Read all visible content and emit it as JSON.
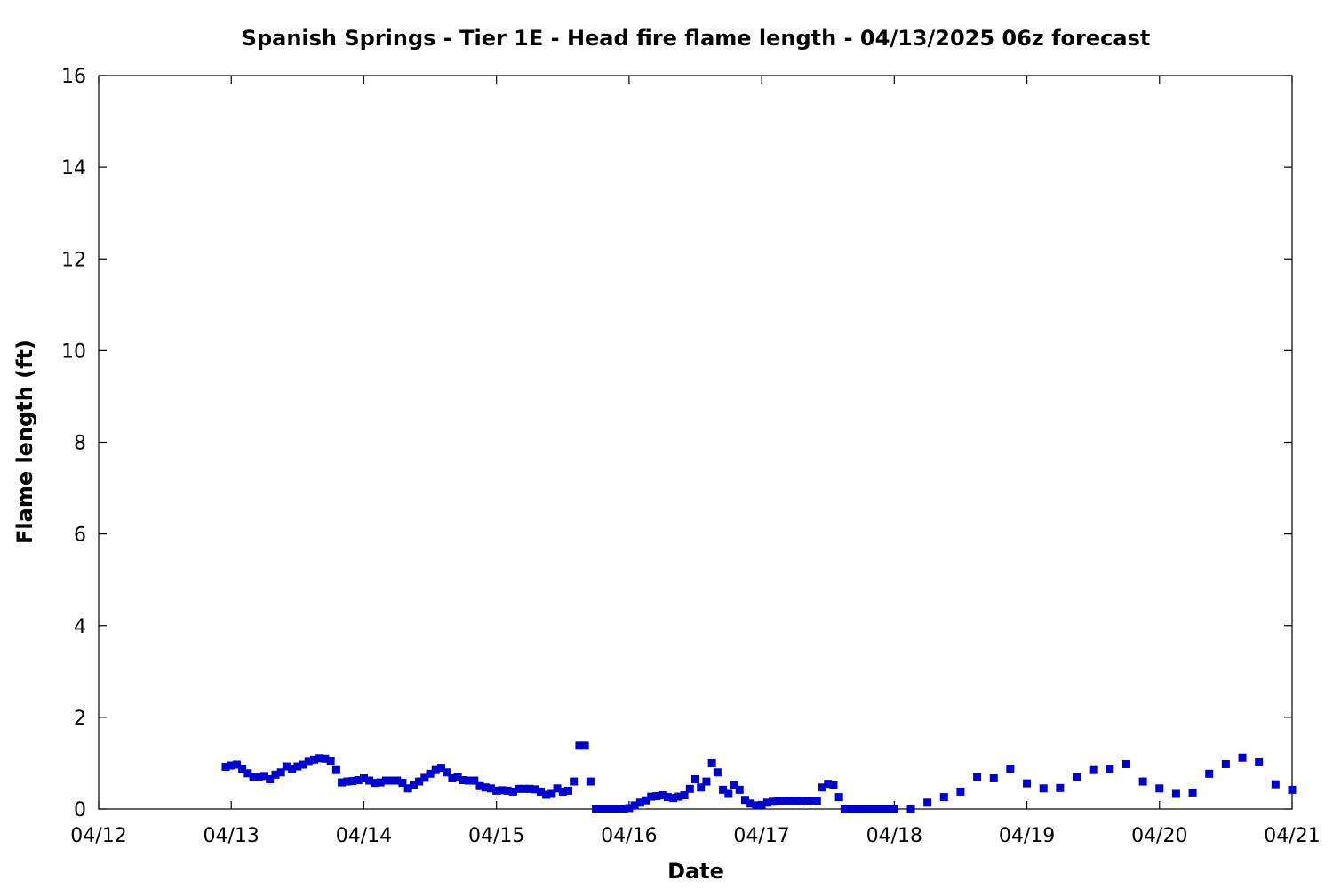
{
  "chart_data": {
    "type": "scatter",
    "title": "Spanish Springs - Tier 1E - Head fire flame length - 04/13/2025 06z forecast",
    "xlabel": "Date",
    "ylabel": "Flame length (ft)",
    "xlim": [
      "2025-04-12",
      "2025-04-21"
    ],
    "ylim": [
      0,
      16
    ],
    "x_ticks": [
      "04/12",
      "04/13",
      "04/14",
      "04/15",
      "04/16",
      "04/17",
      "04/18",
      "04/19",
      "04/20",
      "04/21"
    ],
    "y_ticks": [
      0,
      2,
      4,
      6,
      8,
      10,
      12,
      14,
      16
    ],
    "grid": false,
    "marker_color": "#0000cc",
    "series": [
      {
        "x_unit": "date (April 2025), time in UTC",
        "points": [
          [
            "04/12 23:00",
            0.92
          ],
          [
            "04/13 00:00",
            0.95
          ],
          [
            "04/13 01:00",
            0.97
          ],
          [
            "04/13 02:00",
            0.88
          ],
          [
            "04/13 03:00",
            0.78
          ],
          [
            "04/13 04:00",
            0.7
          ],
          [
            "04/13 05:00",
            0.7
          ],
          [
            "04/13 06:00",
            0.72
          ],
          [
            "04/13 07:00",
            0.65
          ],
          [
            "04/13 08:00",
            0.75
          ],
          [
            "04/13 09:00",
            0.8
          ],
          [
            "04/13 10:00",
            0.93
          ],
          [
            "04/13 11:00",
            0.88
          ],
          [
            "04/13 12:00",
            0.93
          ],
          [
            "04/13 13:00",
            0.97
          ],
          [
            "04/13 14:00",
            1.03
          ],
          [
            "04/13 15:00",
            1.08
          ],
          [
            "04/13 16:00",
            1.11
          ],
          [
            "04/13 17:00",
            1.1
          ],
          [
            "04/13 18:00",
            1.05
          ],
          [
            "04/13 19:00",
            0.85
          ],
          [
            "04/13 20:00",
            0.58
          ],
          [
            "04/13 21:00",
            0.6
          ],
          [
            "04/13 22:00",
            0.61
          ],
          [
            "04/13 23:00",
            0.63
          ],
          [
            "04/14 00:00",
            0.67
          ],
          [
            "04/14 01:00",
            0.62
          ],
          [
            "04/14 02:00",
            0.57
          ],
          [
            "04/14 03:00",
            0.58
          ],
          [
            "04/14 04:00",
            0.62
          ],
          [
            "04/14 05:00",
            0.62
          ],
          [
            "04/14 06:00",
            0.62
          ],
          [
            "04/14 07:00",
            0.57
          ],
          [
            "04/14 08:00",
            0.45
          ],
          [
            "04/14 09:00",
            0.52
          ],
          [
            "04/14 10:00",
            0.6
          ],
          [
            "04/14 11:00",
            0.68
          ],
          [
            "04/14 12:00",
            0.77
          ],
          [
            "04/14 13:00",
            0.85
          ],
          [
            "04/14 14:00",
            0.9
          ],
          [
            "04/14 15:00",
            0.8
          ],
          [
            "04/14 16:00",
            0.67
          ],
          [
            "04/14 17:00",
            0.69
          ],
          [
            "04/14 18:00",
            0.63
          ],
          [
            "04/14 19:00",
            0.62
          ],
          [
            "04/14 20:00",
            0.62
          ],
          [
            "04/14 21:00",
            0.5
          ],
          [
            "04/14 22:00",
            0.47
          ],
          [
            "04/14 23:00",
            0.45
          ],
          [
            "04/15 00:00",
            0.4
          ],
          [
            "04/15 01:00",
            0.41
          ],
          [
            "04/15 02:00",
            0.4
          ],
          [
            "04/15 03:00",
            0.38
          ],
          [
            "04/15 04:00",
            0.44
          ],
          [
            "04/15 05:00",
            0.44
          ],
          [
            "04/15 06:00",
            0.44
          ],
          [
            "04/15 07:00",
            0.43
          ],
          [
            "04/15 08:00",
            0.38
          ],
          [
            "04/15 09:00",
            0.31
          ],
          [
            "04/15 10:00",
            0.33
          ],
          [
            "04/15 11:00",
            0.45
          ],
          [
            "04/15 12:00",
            0.38
          ],
          [
            "04/15 13:00",
            0.4
          ],
          [
            "04/15 14:00",
            0.6
          ],
          [
            "04/15 15:00",
            1.38
          ],
          [
            "04/15 16:00",
            1.38
          ],
          [
            "04/15 17:00",
            0.6
          ],
          [
            "04/15 18:00",
            0.01
          ],
          [
            "04/15 19:00",
            0.01
          ],
          [
            "04/15 20:00",
            0.01
          ],
          [
            "04/15 21:00",
            0.01
          ],
          [
            "04/15 22:00",
            0.01
          ],
          [
            "04/15 23:00",
            0.01
          ],
          [
            "04/16 00:00",
            0.02
          ],
          [
            "04/16 01:00",
            0.08
          ],
          [
            "04/16 02:00",
            0.14
          ],
          [
            "04/16 03:00",
            0.19
          ],
          [
            "04/16 04:00",
            0.27
          ],
          [
            "04/16 05:00",
            0.28
          ],
          [
            "04/16 06:00",
            0.3
          ],
          [
            "04/16 07:00",
            0.26
          ],
          [
            "04/16 08:00",
            0.24
          ],
          [
            "04/16 09:00",
            0.27
          ],
          [
            "04/16 10:00",
            0.3
          ],
          [
            "04/16 11:00",
            0.44
          ],
          [
            "04/16 12:00",
            0.65
          ],
          [
            "04/16 13:00",
            0.47
          ],
          [
            "04/16 14:00",
            0.6
          ],
          [
            "04/16 15:00",
            1.0
          ],
          [
            "04/16 16:00",
            0.8
          ],
          [
            "04/16 17:00",
            0.42
          ],
          [
            "04/16 18:00",
            0.33
          ],
          [
            "04/16 19:00",
            0.52
          ],
          [
            "04/16 20:00",
            0.42
          ],
          [
            "04/16 21:00",
            0.2
          ],
          [
            "04/16 22:00",
            0.12
          ],
          [
            "04/16 23:00",
            0.08
          ],
          [
            "04/17 00:00",
            0.09
          ],
          [
            "04/17 01:00",
            0.14
          ],
          [
            "04/17 02:00",
            0.16
          ],
          [
            "04/17 03:00",
            0.17
          ],
          [
            "04/17 04:00",
            0.18
          ],
          [
            "04/17 05:00",
            0.18
          ],
          [
            "04/17 06:00",
            0.18
          ],
          [
            "04/17 07:00",
            0.18
          ],
          [
            "04/17 08:00",
            0.18
          ],
          [
            "04/17 09:00",
            0.17
          ],
          [
            "04/17 10:00",
            0.18
          ],
          [
            "04/17 11:00",
            0.47
          ],
          [
            "04/17 12:00",
            0.55
          ],
          [
            "04/17 13:00",
            0.52
          ],
          [
            "04/17 14:00",
            0.26
          ],
          [
            "04/17 15:00",
            0.0
          ],
          [
            "04/17 16:00",
            0.0
          ],
          [
            "04/17 17:00",
            0.0
          ],
          [
            "04/17 18:00",
            0.0
          ],
          [
            "04/17 19:00",
            0.0
          ],
          [
            "04/17 20:00",
            0.0
          ],
          [
            "04/17 21:00",
            0.0
          ],
          [
            "04/17 22:00",
            0.0
          ],
          [
            "04/17 23:00",
            0.0
          ],
          [
            "04/18 00:00",
            0.0
          ],
          [
            "04/18 03:00",
            0.0
          ],
          [
            "04/18 06:00",
            0.14
          ],
          [
            "04/18 09:00",
            0.26
          ],
          [
            "04/18 12:00",
            0.38
          ],
          [
            "04/18 15:00",
            0.7
          ],
          [
            "04/18 18:00",
            0.67
          ],
          [
            "04/18 21:00",
            0.88
          ],
          [
            "04/19 00:00",
            0.56
          ],
          [
            "04/19 03:00",
            0.45
          ],
          [
            "04/19 06:00",
            0.46
          ],
          [
            "04/19 09:00",
            0.7
          ],
          [
            "04/19 12:00",
            0.85
          ],
          [
            "04/19 15:00",
            0.88
          ],
          [
            "04/19 18:00",
            0.98
          ],
          [
            "04/19 21:00",
            0.6
          ],
          [
            "04/20 00:00",
            0.45
          ],
          [
            "04/20 03:00",
            0.33
          ],
          [
            "04/20 06:00",
            0.36
          ],
          [
            "04/20 09:00",
            0.77
          ],
          [
            "04/20 12:00",
            0.98
          ],
          [
            "04/20 15:00",
            1.12
          ],
          [
            "04/20 18:00",
            1.02
          ],
          [
            "04/20 21:00",
            0.54
          ],
          [
            "04/21 00:00",
            0.42
          ]
        ]
      }
    ]
  }
}
